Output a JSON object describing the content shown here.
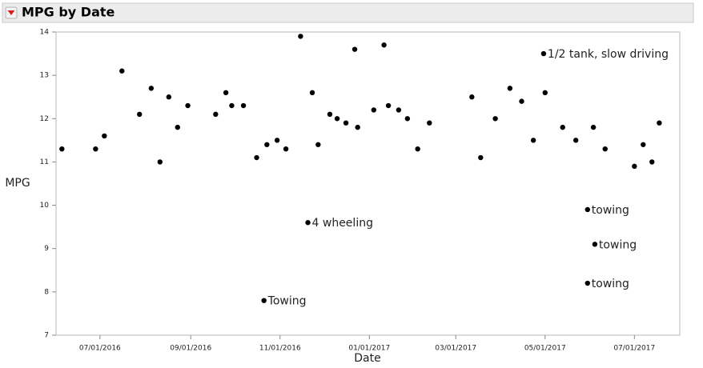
{
  "chart_data": {
    "type": "scatter",
    "title": "MPG by Date",
    "x_label": "Date",
    "y_label": "MPG",
    "color": "#000000",
    "x": [
      "06/05/2016",
      "06/28/2016",
      "07/04/2016",
      "07/16/2016",
      "07/28/2016",
      "08/05/2016",
      "08/11/2016",
      "08/17/2016",
      "08/23/2016",
      "08/30/2016",
      "09/18/2016",
      "09/25/2016",
      "09/29/2016",
      "10/07/2016",
      "10/16/2016",
      "10/21/2016",
      "10/23/2016",
      "10/30/2016",
      "11/05/2016",
      "11/15/2016",
      "11/20/2016",
      "11/23/2016",
      "11/27/2016",
      "12/05/2016",
      "12/10/2016",
      "12/16/2016",
      "12/22/2016",
      "12/24/2016",
      "01/04/2017",
      "01/11/2017",
      "01/14/2017",
      "01/21/2017",
      "01/27/2017",
      "02/03/2017",
      "02/11/2017",
      "03/12/2017",
      "03/18/2017",
      "03/28/2017",
      "04/07/2017",
      "04/15/2017",
      "04/23/2017",
      "04/30/2017",
      "05/01/2017",
      "05/13/2017",
      "05/22/2017",
      "05/30/2017",
      "05/30/2017",
      "06/03/2017",
      "06/04/2017",
      "06/11/2017",
      "07/01/2017",
      "07/07/2017",
      "07/13/2017",
      "07/18/2017"
    ],
    "y": [
      11.3,
      11.3,
      11.6,
      13.1,
      12.1,
      12.7,
      11.0,
      12.5,
      11.8,
      12.3,
      12.1,
      12.6,
      12.3,
      12.3,
      11.1,
      7.8,
      11.4,
      11.5,
      11.3,
      13.9,
      9.6,
      12.6,
      11.4,
      12.1,
      12.0,
      11.9,
      13.6,
      11.8,
      12.2,
      13.7,
      12.3,
      12.2,
      12.0,
      11.3,
      11.9,
      12.5,
      11.1,
      12.0,
      12.7,
      12.4,
      11.5,
      13.5,
      12.6,
      11.8,
      11.5,
      9.9,
      8.2,
      11.8,
      9.1,
      11.3,
      10.9,
      11.4,
      11.0,
      11.9
    ],
    "point_labels": [
      null,
      null,
      null,
      null,
      null,
      null,
      null,
      null,
      null,
      null,
      null,
      null,
      null,
      null,
      null,
      "Towing",
      null,
      null,
      null,
      null,
      "4 wheeling",
      null,
      null,
      null,
      null,
      null,
      null,
      null,
      null,
      null,
      null,
      null,
      null,
      null,
      null,
      null,
      null,
      null,
      null,
      null,
      null,
      "1/2 tank, slow driving",
      null,
      null,
      null,
      "towing",
      "towing",
      null,
      "towing",
      null,
      null,
      null,
      null,
      null
    ],
    "xlim": [
      "06/01/2016",
      "08/01/2017"
    ],
    "xticks": [
      "07/01/2016",
      "09/01/2016",
      "11/01/2016",
      "01/01/2017",
      "03/01/2017",
      "05/01/2017",
      "07/01/2017"
    ],
    "ylim": [
      7,
      14
    ],
    "yticks": [
      7,
      8,
      9,
      10,
      11,
      12,
      13,
      14
    ]
  }
}
